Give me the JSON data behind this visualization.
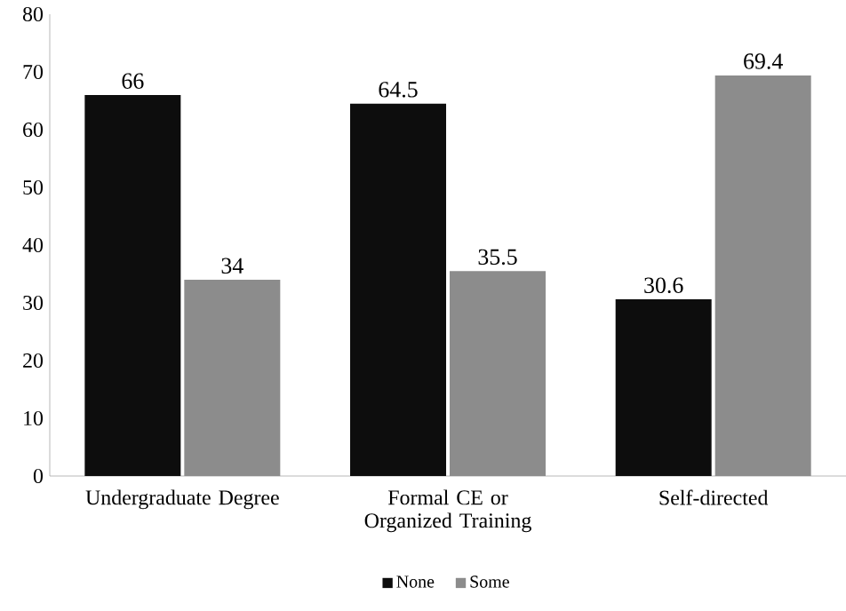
{
  "chart_data": {
    "type": "bar",
    "categories": [
      "Undergraduate Degree",
      "Formal CE or Organized Training",
      "Self-directed"
    ],
    "series": [
      {
        "name": "None",
        "color": "#0d0d0d",
        "values": [
          66,
          64.5,
          30.6
        ]
      },
      {
        "name": "Some",
        "color": "#8c8c8c",
        "values": [
          34,
          35.5,
          69.4
        ]
      }
    ],
    "ylim": [
      0,
      80
    ],
    "yticks": [
      0,
      10,
      20,
      30,
      40,
      50,
      60,
      70,
      80
    ],
    "data_labels": true,
    "legend": "bottom",
    "grid": false
  }
}
